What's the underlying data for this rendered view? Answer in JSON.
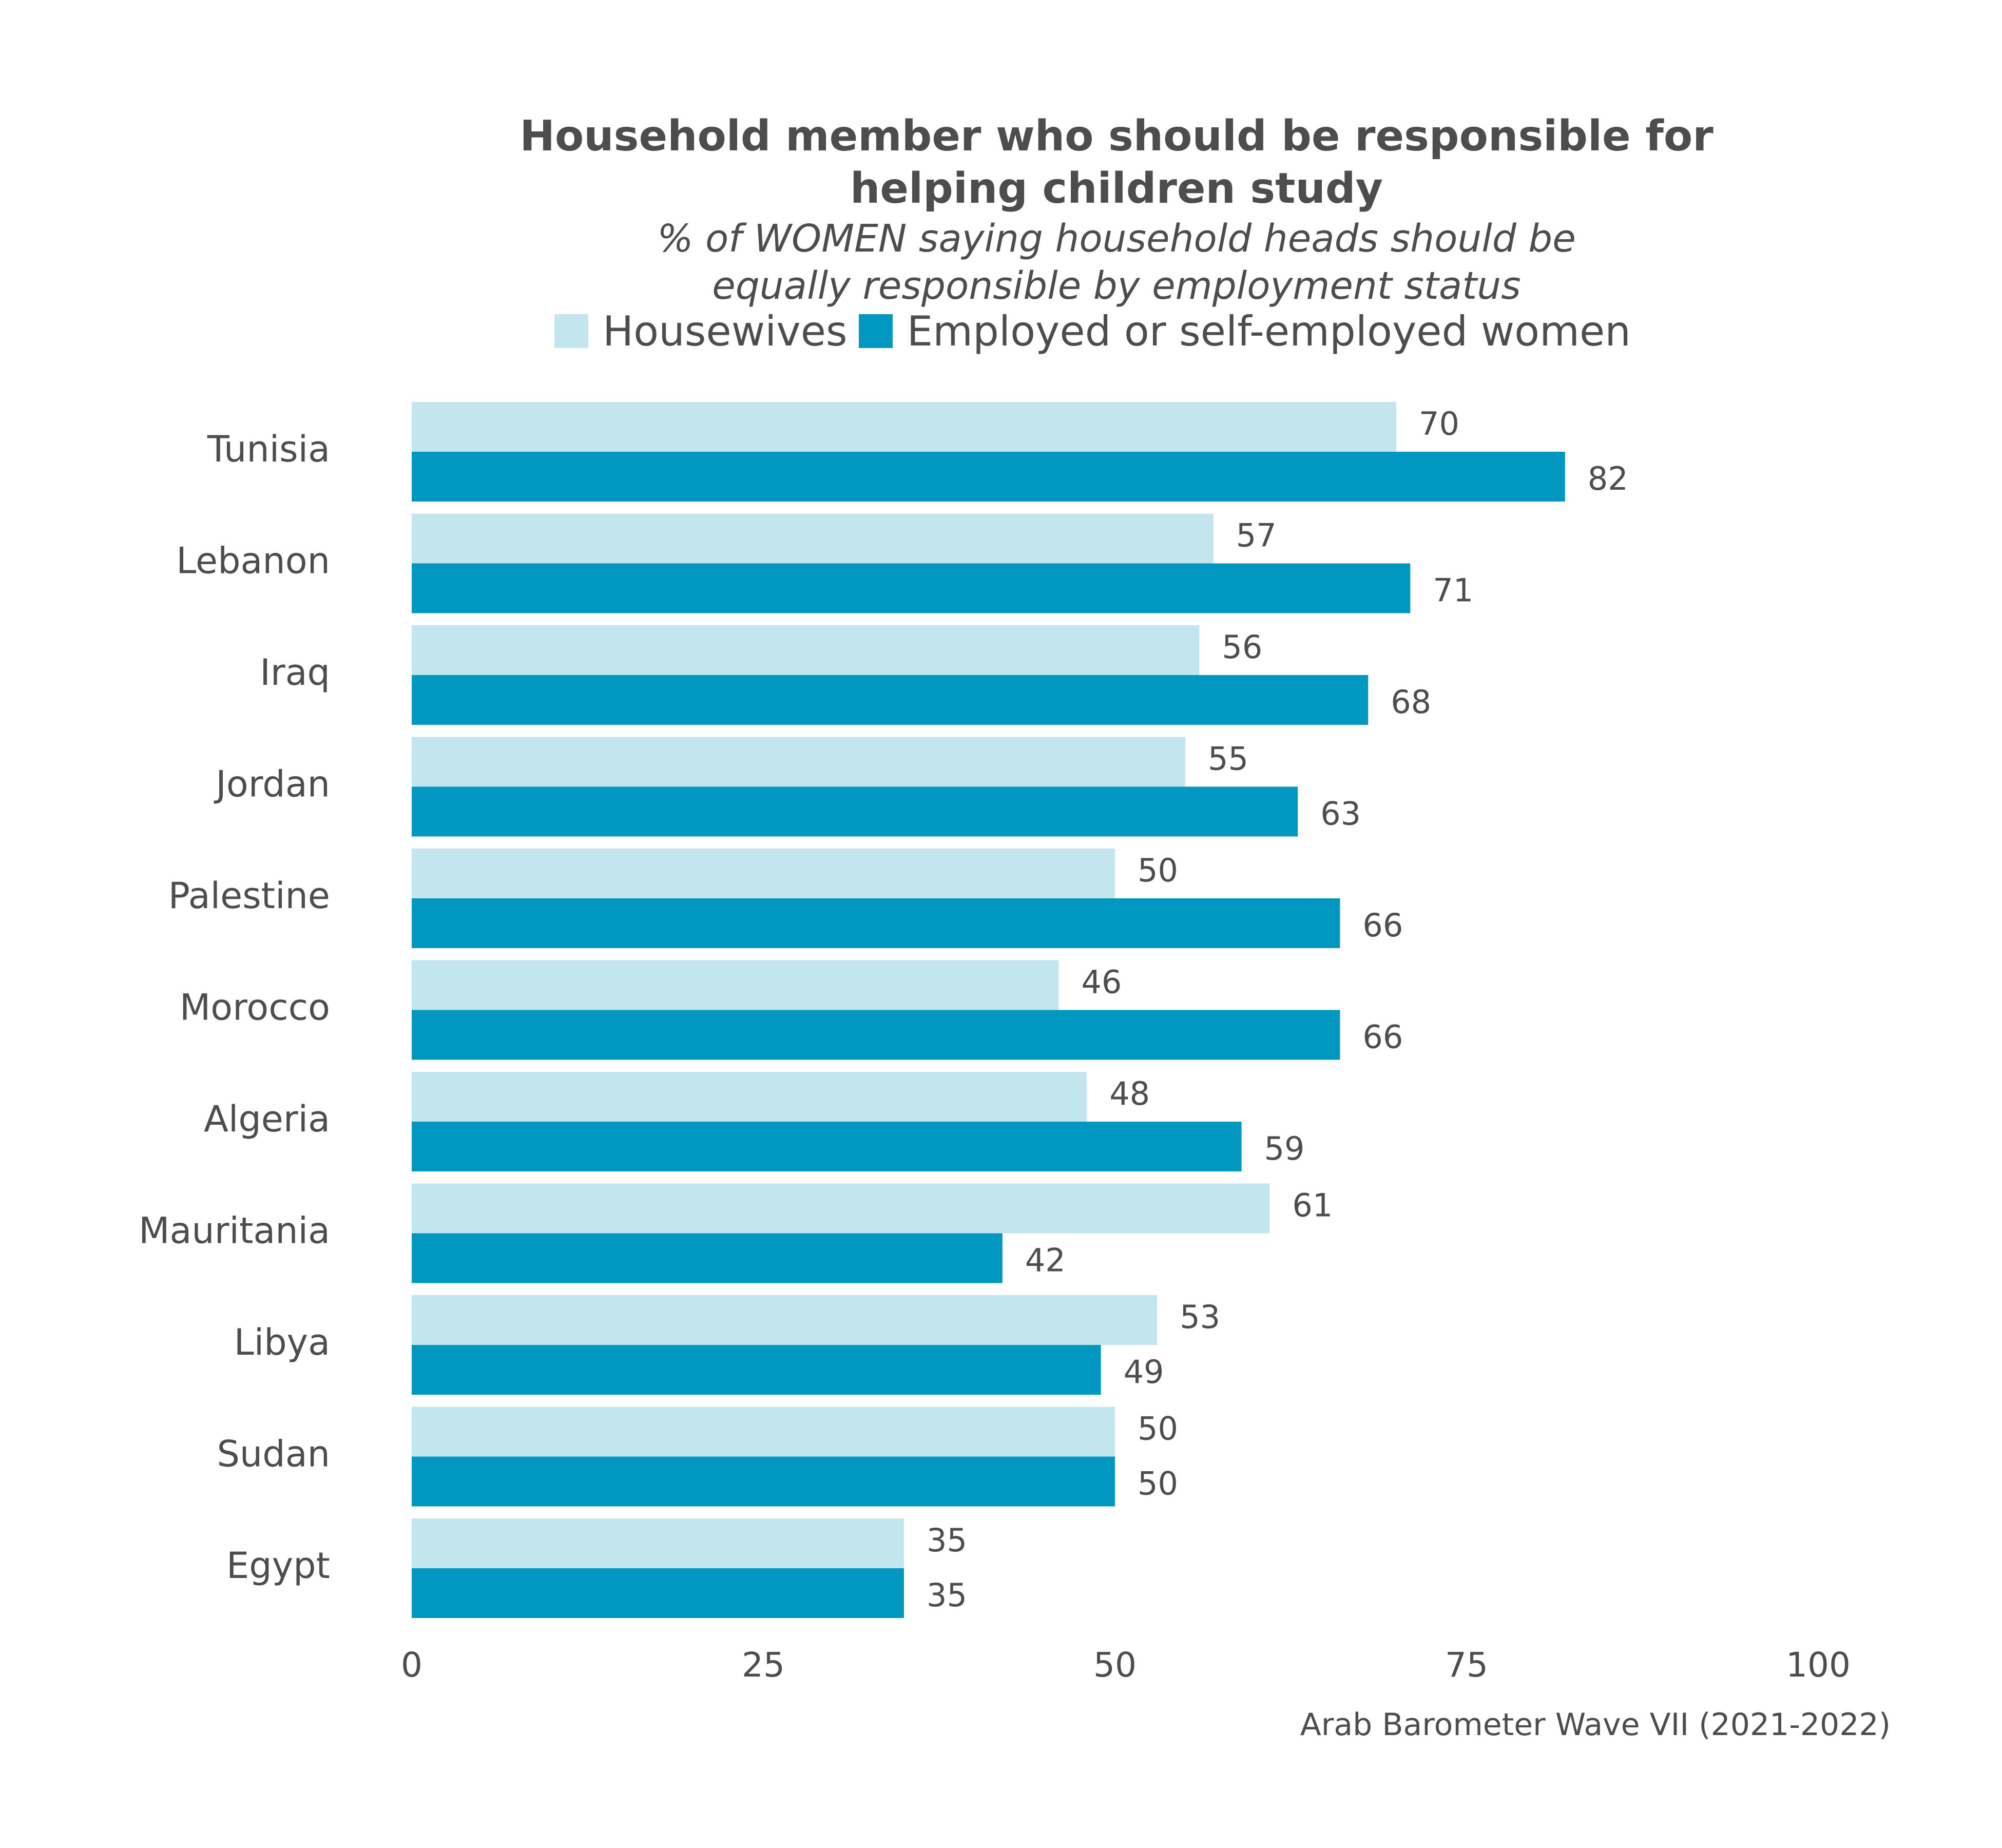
{
  "chart_data": {
    "type": "bar",
    "orientation": "horizontal",
    "title": "Household member who should be responsible for helping children study",
    "subtitle": "% of WOMEN saying household heads should be equally responsible by employment status",
    "categories": [
      "Tunisia",
      "Lebanon",
      "Iraq",
      "Jordan",
      "Palestine",
      "Morocco",
      "Algeria",
      "Mauritania",
      "Libya",
      "Sudan",
      "Egypt"
    ],
    "series": [
      {
        "name": "Housewives",
        "color": "#c2e5ee",
        "values": [
          70,
          57,
          56,
          55,
          50,
          46,
          48,
          61,
          53,
          50,
          35
        ]
      },
      {
        "name": "Employed or self-employed women",
        "color": "#0098c1",
        "values": [
          82,
          71,
          68,
          63,
          66,
          66,
          59,
          42,
          49,
          50,
          35
        ]
      }
    ],
    "xlim": [
      0,
      100
    ],
    "xticks": [
      0,
      25,
      50,
      75,
      100
    ],
    "grid": false,
    "legend_position": "top",
    "data_labels": true
  },
  "title_lines": [
    "Household member who should be responsible for",
    "helping children study"
  ],
  "subtitle_lines": [
    "% of WOMEN saying household heads should be",
    "equally responsible by employment status"
  ],
  "caption": "Arab Barometer Wave VII (2021-2022)"
}
